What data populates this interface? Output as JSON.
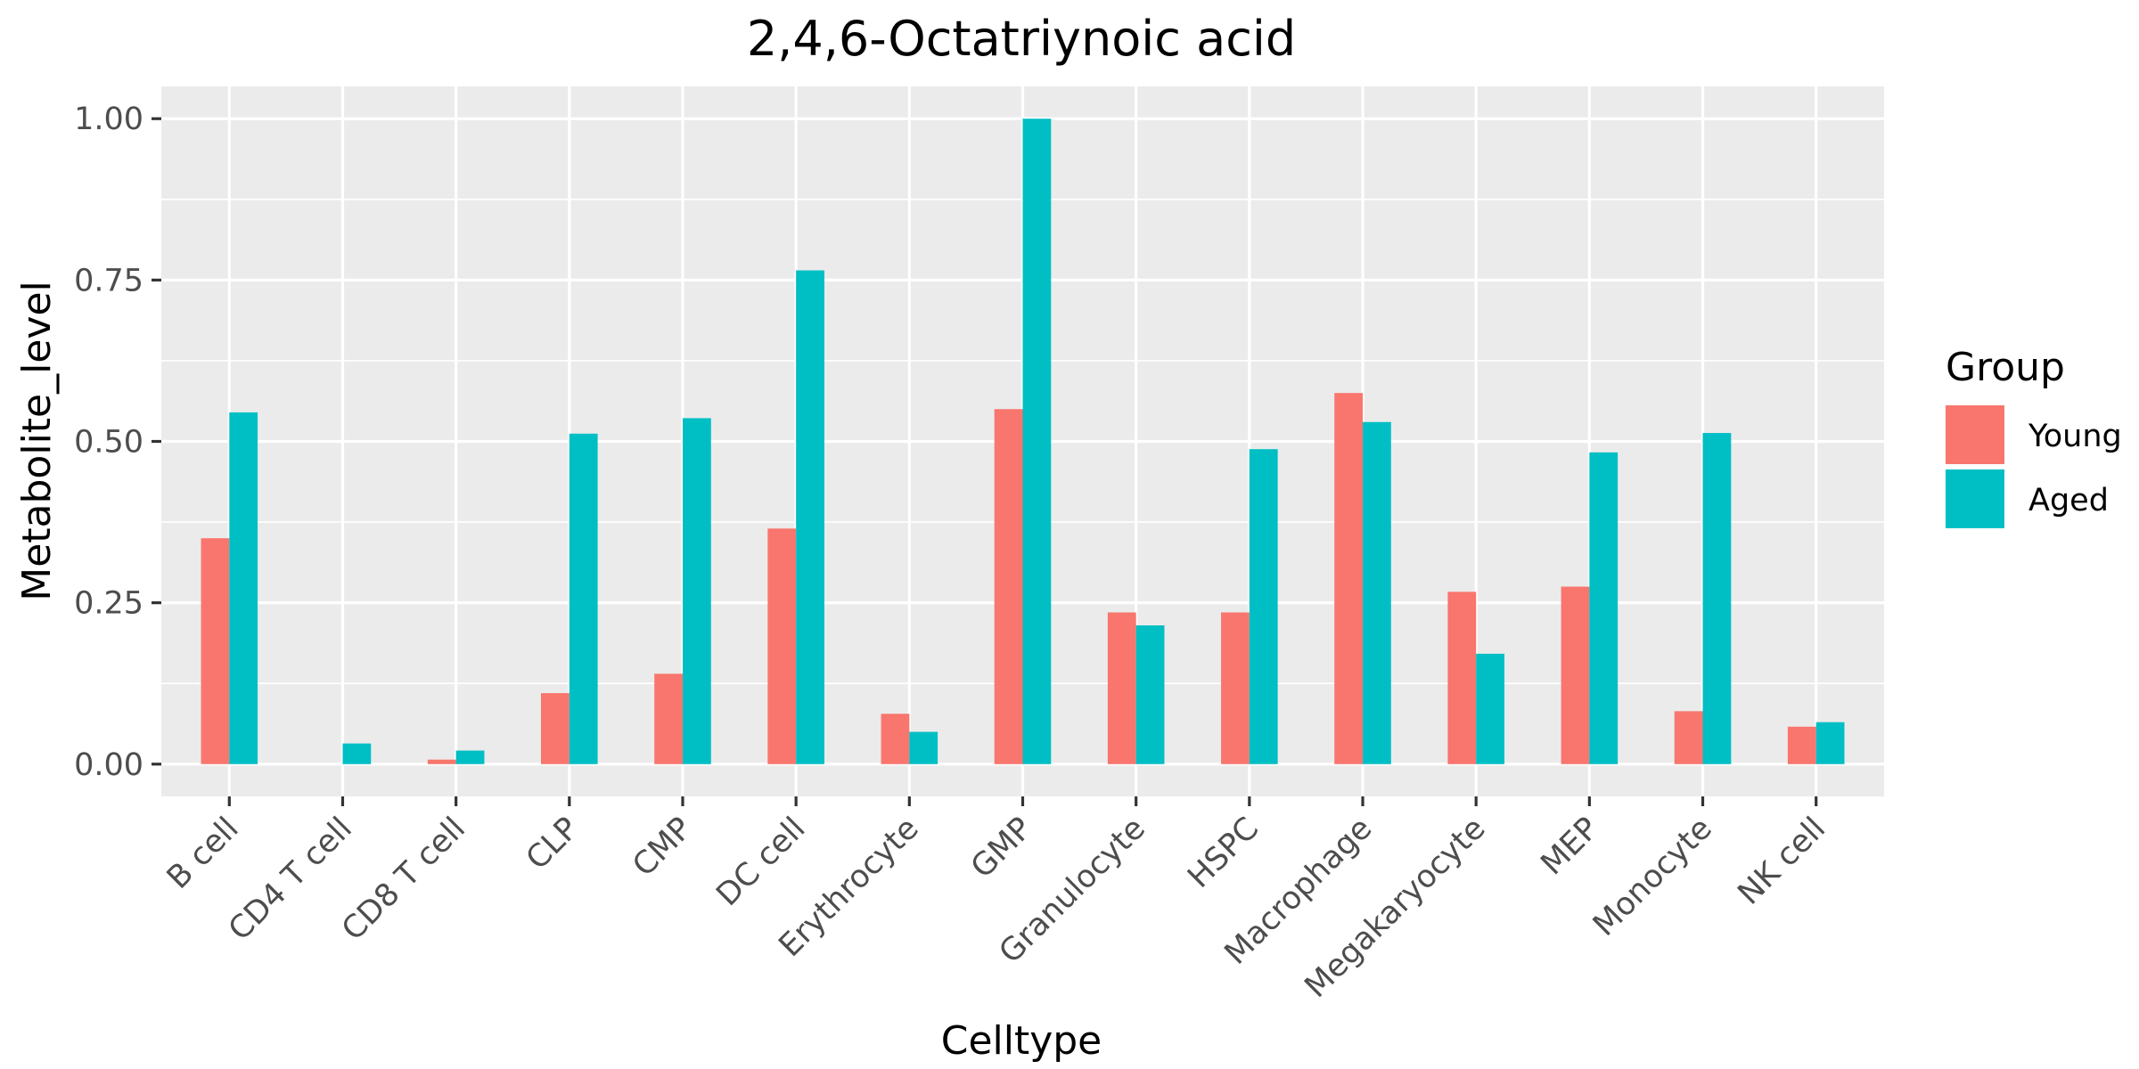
{
  "chart_data": {
    "type": "bar",
    "title": "2,4,6-Octatriynoic acid",
    "xlabel": "Celltype",
    "ylabel": "Metabolite_level",
    "ylim": [
      -0.05,
      1.05
    ],
    "yticks": [
      0.0,
      0.25,
      0.5,
      0.75,
      1.0
    ],
    "ytick_labels": [
      "0.00",
      "0.25",
      "0.50",
      "0.75",
      "1.00"
    ],
    "grid": true,
    "legend_position": "right",
    "legend_title": "Group",
    "categories": [
      "B cell",
      "CD4 T cell",
      "CD8 T cell",
      "CLP",
      "CMP",
      "DC cell",
      "Erythrocyte",
      "GMP",
      "Granulocyte",
      "HSPC",
      "Macrophage",
      "Megakaryocyte",
      "MEP",
      "Monocyte",
      "NK cell"
    ],
    "series": [
      {
        "name": "Young",
        "color": "#F8766D",
        "values": [
          0.35,
          0.0,
          0.007,
          0.11,
          0.14,
          0.365,
          0.078,
          0.55,
          0.235,
          0.235,
          0.575,
          0.267,
          0.275,
          0.082,
          0.058
        ]
      },
      {
        "name": "Aged",
        "color": "#00BFC4",
        "values": [
          0.545,
          0.032,
          0.021,
          0.512,
          0.536,
          0.765,
          0.05,
          1.0,
          0.215,
          0.488,
          0.53,
          0.171,
          0.483,
          0.513,
          0.065
        ]
      }
    ]
  }
}
